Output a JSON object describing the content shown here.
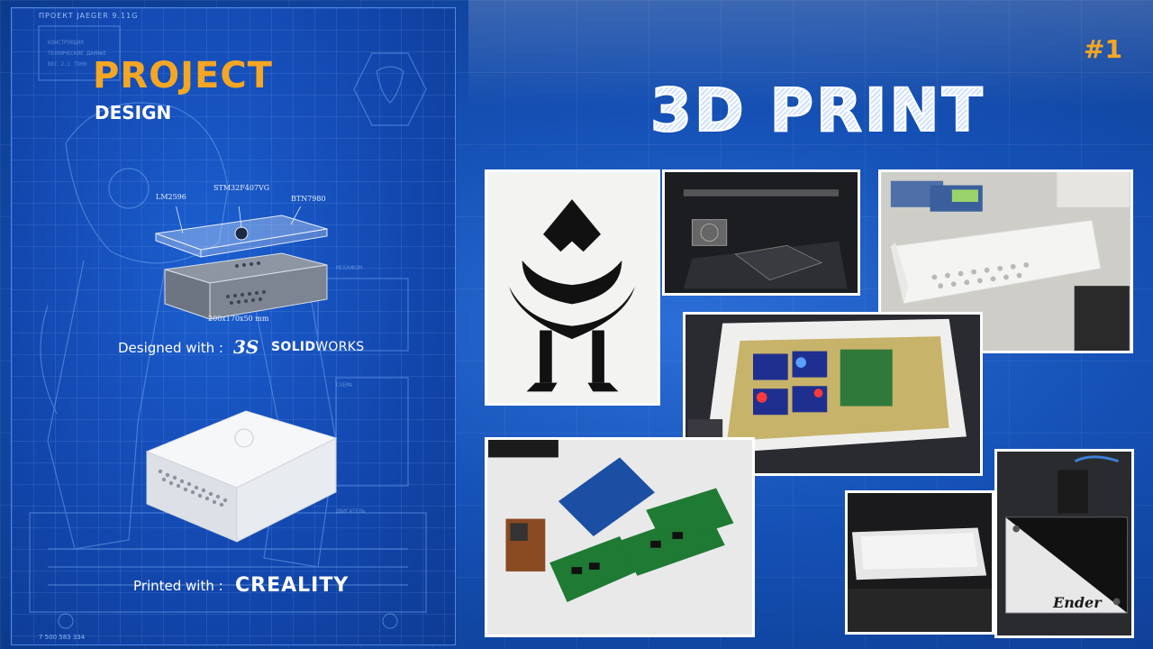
{
  "poster": {
    "header": "ПРОЕКТ JAEGER 9.11G",
    "title": "PROJECT",
    "subtitle": "DESIGN",
    "labels": {
      "lm": "LM2596",
      "stm": "STM32F407VG",
      "btn": "BTN7980",
      "size": "200x170x50 mm"
    },
    "designed_with": "Designed with :",
    "solidworks_prefix": "SOLID",
    "solidworks_suffix": "WORKS",
    "printed_with": "Printed with :",
    "creality": "CREALITY",
    "footer": "7 500 583 334"
  },
  "right": {
    "badge": "#1",
    "title": "3D PRINT",
    "ender_label": "Ender"
  },
  "colors": {
    "accent": "#f5a623",
    "background": "#1551b6",
    "poster": "#1348b0"
  },
  "photos": [
    {
      "name": "emblem-print"
    },
    {
      "name": "printer-bed-in-progress"
    },
    {
      "name": "white-case-held"
    },
    {
      "name": "electronics-in-case"
    },
    {
      "name": "pcb-boards"
    },
    {
      "name": "case-on-printer"
    },
    {
      "name": "ender-printer"
    }
  ]
}
